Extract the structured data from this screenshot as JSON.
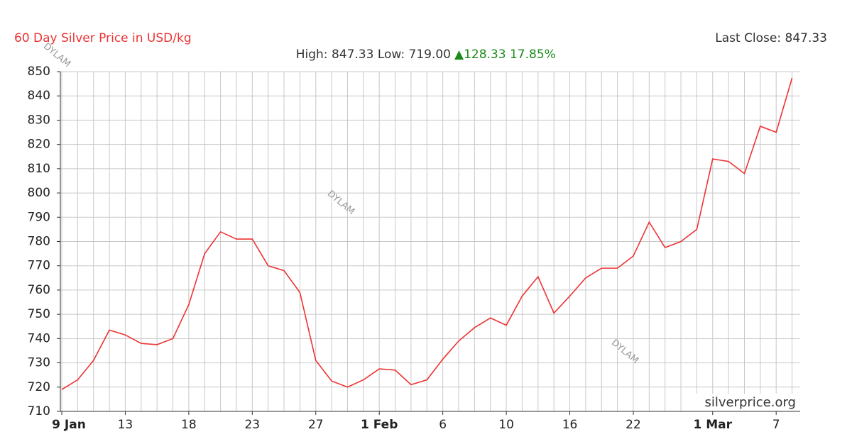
{
  "chart_data": {
    "type": "line",
    "title": "60 Day Silver Price in USD/kg",
    "last_close": "Last Close: 847.33",
    "high_low": "High: 847.33 Low: 719.00",
    "change": "▲128.33 17.85%",
    "source": "silverprice.org",
    "watermarks": [
      "DYLAM",
      "DYLAM",
      "DYLAM"
    ],
    "categories": [
      "9 Jan",
      null,
      null,
      null,
      "13",
      null,
      null,
      null,
      "18",
      null,
      null,
      null,
      "23",
      null,
      null,
      null,
      "27",
      null,
      null,
      null,
      "1 Feb",
      null,
      null,
      null,
      "6",
      null,
      null,
      null,
      "10",
      null,
      null,
      null,
      "16",
      null,
      null,
      null,
      "22",
      null,
      null,
      null,
      null,
      "1 Mar",
      null,
      null,
      null,
      "7",
      null
    ],
    "series": [
      {
        "name": "Silver Price",
        "color": "#ee3333",
        "values": [
          719,
          723,
          731,
          743.5,
          741.5,
          738,
          737.5,
          740,
          754,
          775,
          784,
          781,
          781,
          770,
          768,
          759,
          731,
          722.5,
          720,
          723,
          727.5,
          727,
          721,
          723,
          731.5,
          739,
          744.5,
          748.5,
          745.5,
          757.5,
          765.5,
          750.5,
          757.5,
          765,
          769,
          769,
          774,
          788,
          777.5,
          780,
          785,
          814,
          813,
          808,
          827.5,
          825,
          847.33
        ]
      }
    ],
    "ylim": [
      710,
      850
    ],
    "yticks": [
      710,
      720,
      730,
      740,
      750,
      760,
      770,
      780,
      790,
      800,
      810,
      820,
      830,
      840,
      850
    ],
    "grid": true
  }
}
